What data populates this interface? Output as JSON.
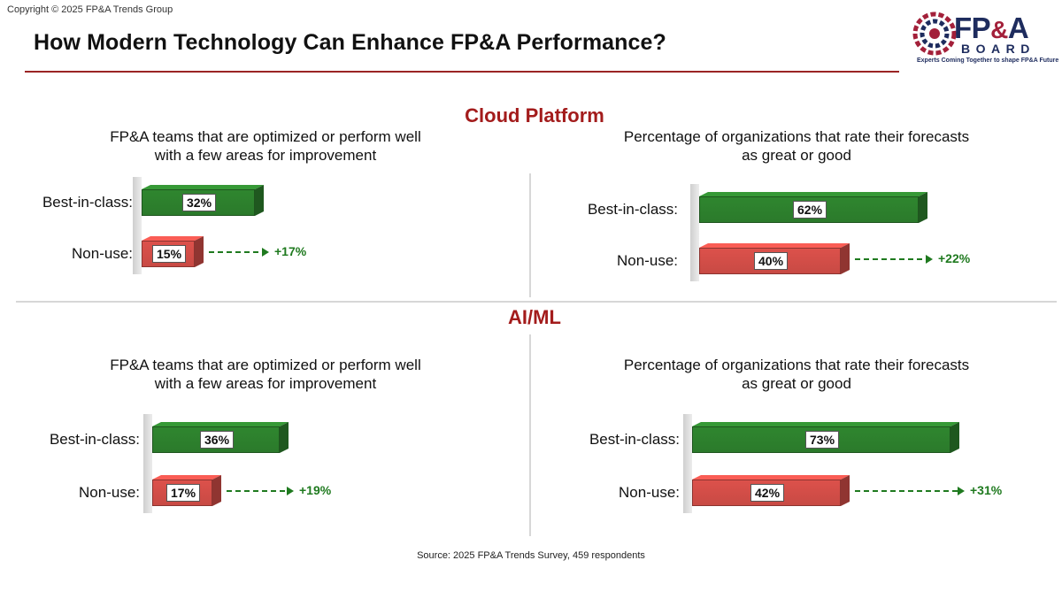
{
  "copyright": "Copyright © 2025 FP&A Trends Group",
  "title": "How Modern Technology Can Enhance FP&A Performance?",
  "logo": {
    "fp": "FP",
    "amp": "&",
    "a": "A",
    "board": "BOARD",
    "tagline": "Experts Coming Together to shape FP&A Future"
  },
  "colors": {
    "accent_red": "#a31c1c",
    "best_bar": "#2b7a2b",
    "nonuse_bar": "#c84a44",
    "diff_green": "#1f7a1f",
    "divider": "#d7d7d7"
  },
  "sections": {
    "cloud": "Cloud Platform",
    "aiml": "AI/ML"
  },
  "source": "Source: 2025 FP&A Trends Survey, 459 respondents",
  "chart_data": [
    {
      "type": "bar",
      "section": "Cloud Platform",
      "title_lines": [
        "FP&A teams that are optimized or perform well",
        "with a few areas for improvement"
      ],
      "categories": [
        "Best-in-class:",
        "Non-use:"
      ],
      "values": [
        32,
        15
      ],
      "labels": [
        "32%",
        "15%"
      ],
      "difference": "+17%"
    },
    {
      "type": "bar",
      "section": "Cloud Platform",
      "title_lines": [
        "Percentage of organizations that rate their forecasts",
        "as great or good"
      ],
      "categories": [
        "Best-in-class:",
        "Non-use:"
      ],
      "values": [
        62,
        40
      ],
      "labels": [
        "62%",
        "40%"
      ],
      "difference": "+22%"
    },
    {
      "type": "bar",
      "section": "AI/ML",
      "title_lines": [
        "FP&A teams that are optimized or perform well",
        "with a few areas for improvement"
      ],
      "categories": [
        "Best-in-class:",
        "Non-use:"
      ],
      "values": [
        36,
        17
      ],
      "labels": [
        "36%",
        "17%"
      ],
      "difference": "+19%"
    },
    {
      "type": "bar",
      "section": "AI/ML",
      "title_lines": [
        "Percentage of organizations that rate their forecasts",
        "as great or good"
      ],
      "categories": [
        "Best-in-class:",
        "Non-use:"
      ],
      "values": [
        73,
        42
      ],
      "labels": [
        "73%",
        "42%"
      ],
      "difference": "+31%"
    }
  ]
}
